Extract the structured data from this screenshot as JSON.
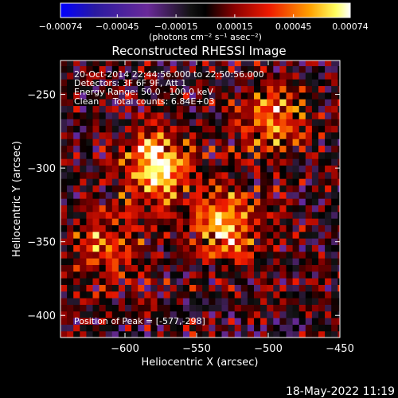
{
  "chart_data": {
    "type": "heatmap",
    "title": "Reconstructed RHESSI Image",
    "xlabel": "Heliocentric X (arcsec)",
    "ylabel": "Heliocentric Y (arcsec)",
    "xlim": [
      -645,
      -450
    ],
    "ylim": [
      -415,
      -227
    ],
    "x_ticks": [
      -600,
      -550,
      -500,
      -450
    ],
    "x_tick_labels": [
      "−600",
      "−550",
      "−500",
      "−450"
    ],
    "y_ticks": [
      -250,
      -300,
      -350,
      -400
    ],
    "y_tick_labels": [
      "−250",
      "−300",
      "−350",
      "−400"
    ],
    "colorbar": {
      "range": [
        -0.00074,
        0.00074
      ],
      "ticks": [
        -0.00074,
        -0.00045,
        -0.00015,
        0.00015,
        0.00045,
        0.00074
      ],
      "tick_labels": [
        "−0.00074",
        "−0.00045",
        "−0.00015",
        "0.00015",
        "0.00045",
        "0.00074"
      ],
      "unit_label": "(photons cm⁻² s⁻¹ asec⁻²)"
    },
    "annotations": [
      "20-Oct-2014 22:44:56.000 to 22:50:56.000",
      "Detectors: 3F 6F 9F, Att 1",
      "Energy Range: 50.0 - 100.0 keV",
      "Clean     Total counts: 6.84E+03"
    ],
    "peak_label": "Position of Peak = [-577,-298]",
    "peak": [
      -577,
      -298
    ],
    "sources": [
      {
        "x": -577,
        "y": -298,
        "amp": 0.00074
      },
      {
        "x": -528,
        "y": -338,
        "amp": 0.0006
      },
      {
        "x": -497,
        "y": -268,
        "amp": 0.00045
      },
      {
        "x": -612,
        "y": -352,
        "amp": 0.00038
      }
    ]
  },
  "footer_timestamp": "18-May-2022 11:19",
  "colors": {
    "background": "#000000",
    "foreground": "#ffffff"
  }
}
